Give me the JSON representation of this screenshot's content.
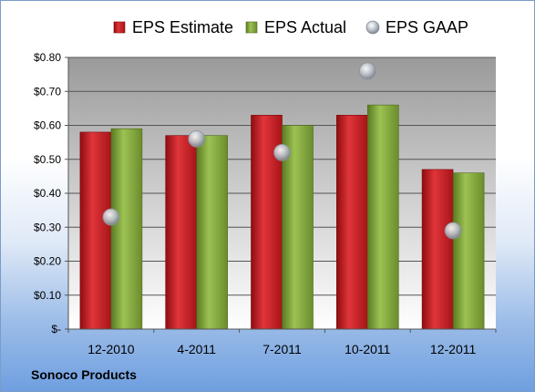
{
  "footer": {
    "company": "Sonoco Products"
  },
  "chart_data": {
    "type": "bar",
    "categories": [
      "12-2010",
      "4-2011",
      "7-2011",
      "10-2011",
      "12-2011"
    ],
    "series": [
      {
        "name": "EPS Estimate",
        "type": "bar",
        "color": "#c0191f",
        "values": [
          0.58,
          0.57,
          0.63,
          0.63,
          0.47
        ]
      },
      {
        "name": "EPS Actual",
        "type": "bar",
        "color": "#7fa33c",
        "values": [
          0.59,
          0.57,
          0.6,
          0.66,
          0.46
        ]
      },
      {
        "name": "EPS GAAP",
        "type": "scatter",
        "color": "#b7bcc4",
        "values": [
          0.33,
          0.56,
          0.52,
          0.76,
          0.29
        ]
      }
    ],
    "ylim": [
      0,
      0.8
    ],
    "yticks": [
      0,
      0.1,
      0.2,
      0.3,
      0.4,
      0.5,
      0.6,
      0.7,
      0.8
    ],
    "ytick_labels": [
      "$-",
      "$0.10",
      "$0.20",
      "$0.30",
      "$0.40",
      "$0.50",
      "$0.60",
      "$0.70",
      "$0.80"
    ],
    "grid": true,
    "legend": "top"
  }
}
